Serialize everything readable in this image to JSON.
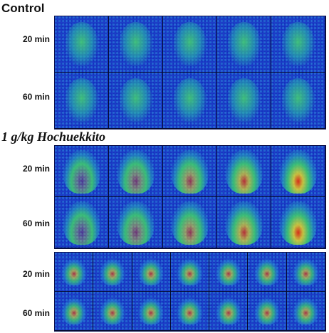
{
  "sections": [
    {
      "id": "control",
      "title": "Control",
      "rows": [
        "20 min",
        "60 min"
      ]
    },
    {
      "id": "treatment",
      "title": "1 g/kg Hochuekkito",
      "rows": [
        "20 min",
        "60 min"
      ]
    },
    {
      "id": "coronal",
      "title": "",
      "rows": [
        "20 min",
        "60 min"
      ]
    }
  ],
  "colors": {
    "background_blue": "#1d3ec8",
    "signal_green": "#3fd06a",
    "hot_red": "#e02a10",
    "hot_yellow": "#f0e020"
  }
}
